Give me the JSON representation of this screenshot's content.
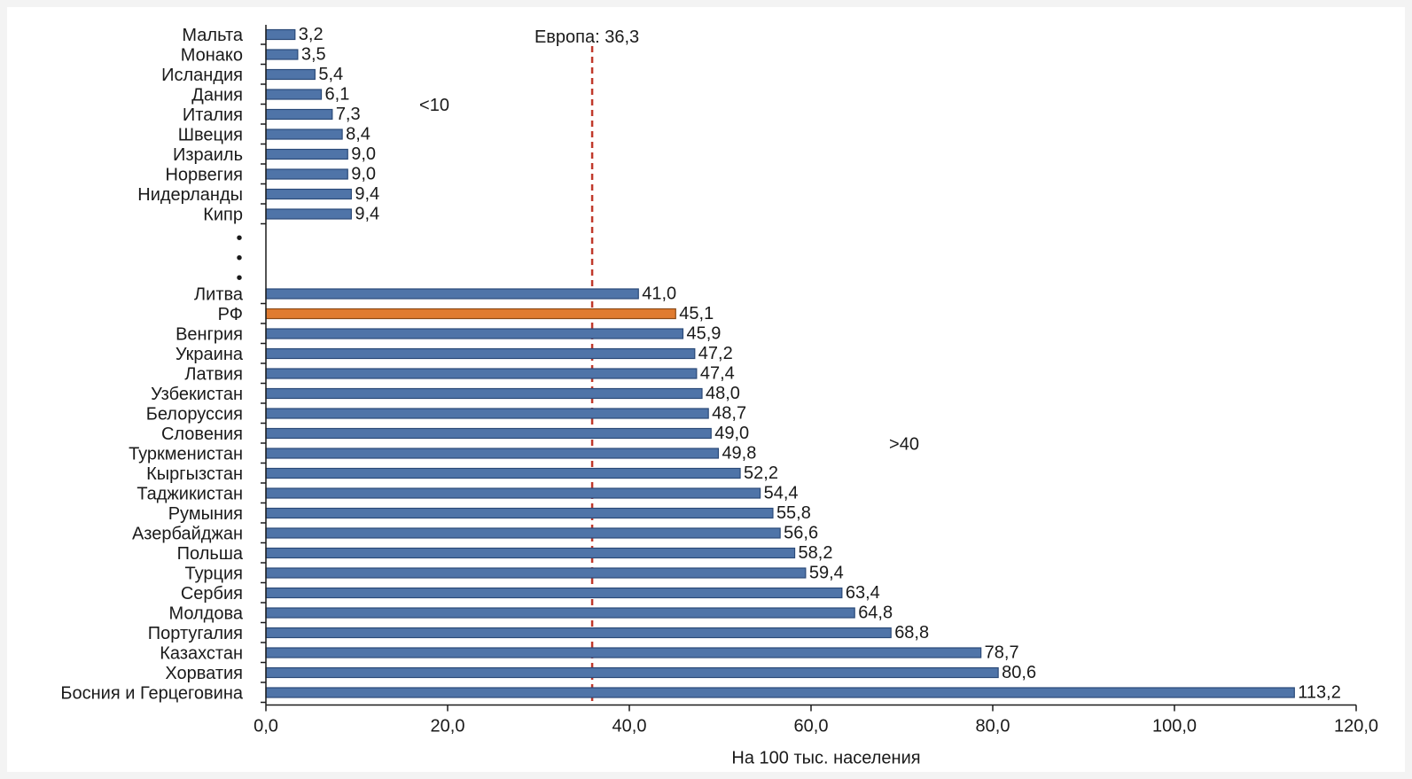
{
  "chart_data": {
    "type": "bar",
    "orientation": "horizontal",
    "xlabel": "На 100 тыс. населения",
    "xlim": [
      0,
      120
    ],
    "xticks": [
      "0,0",
      "20,0",
      "40,0",
      "60,0",
      "80,0",
      "100,0",
      "120,0"
    ],
    "reference_line": {
      "label": "Европа: 36,3",
      "value": 36.3,
      "color": "#c0392b",
      "style": "dashed"
    },
    "groups": [
      {
        "label": "<10",
        "items": [
          {
            "name": "Мальта",
            "value": 3.2,
            "label": "3,2"
          },
          {
            "name": "Монако",
            "value": 3.5,
            "label": "3,5"
          },
          {
            "name": "Исландия",
            "value": 5.4,
            "label": "5,4"
          },
          {
            "name": "Дания",
            "value": 6.1,
            "label": "6,1"
          },
          {
            "name": "Италия",
            "value": 7.3,
            "label": "7,3"
          },
          {
            "name": "Швеция",
            "value": 8.4,
            "label": "8,4"
          },
          {
            "name": "Израиль",
            "value": 9.0,
            "label": "9,0"
          },
          {
            "name": "Норвегия",
            "value": 9.0,
            "label": "9,0"
          },
          {
            "name": "Нидерланды",
            "value": 9.4,
            "label": "9,4"
          },
          {
            "name": "Кипр",
            "value": 9.4,
            "label": "9,4"
          }
        ]
      },
      {
        "label": ">40",
        "items": [
          {
            "name": "Литва",
            "value": 41.0,
            "label": "41,0"
          },
          {
            "name": "РФ",
            "value": 45.1,
            "label": "45,1",
            "highlight": true
          },
          {
            "name": "Венгрия",
            "value": 45.9,
            "label": "45,9"
          },
          {
            "name": "Украина",
            "value": 47.2,
            "label": "47,2"
          },
          {
            "name": "Латвия",
            "value": 47.4,
            "label": "47,4"
          },
          {
            "name": "Узбекистан",
            "value": 48.0,
            "label": "48,0"
          },
          {
            "name": "Белоруссия",
            "value": 48.7,
            "label": "48,7"
          },
          {
            "name": "Словения",
            "value": 49.0,
            "label": "49,0"
          },
          {
            "name": "Туркменистан",
            "value": 49.8,
            "label": "49,8"
          },
          {
            "name": "Кыргызстан",
            "value": 52.2,
            "label": "52,2"
          },
          {
            "name": "Таджикистан",
            "value": 54.4,
            "label": "54,4"
          },
          {
            "name": "Румыния",
            "value": 55.8,
            "label": "55,8"
          },
          {
            "name": "Азербайджан",
            "value": 56.6,
            "label": "56,6"
          },
          {
            "name": "Польша",
            "value": 58.2,
            "label": "58,2"
          },
          {
            "name": "Турция",
            "value": 59.4,
            "label": "59,4"
          },
          {
            "name": "Сербия",
            "value": 63.4,
            "label": "63,4"
          },
          {
            "name": "Молдова",
            "value": 64.8,
            "label": "64,8"
          },
          {
            "name": "Португалия",
            "value": 68.8,
            "label": "68,8"
          },
          {
            "name": "Казахстан",
            "value": 78.7,
            "label": "78,7"
          },
          {
            "name": "Хорватия",
            "value": 80.6,
            "label": "80,6"
          },
          {
            "name": "Босния и Герцеговина",
            "value": 113.2,
            "label": "113,2"
          }
        ]
      }
    ],
    "gap_marker": "•",
    "colors": {
      "bar": "#4f74a8",
      "bar_stroke": "#2b4a78",
      "highlight": "#e07b30",
      "highlight_stroke": "#8a4a18",
      "reference": "#c0392b"
    }
  }
}
